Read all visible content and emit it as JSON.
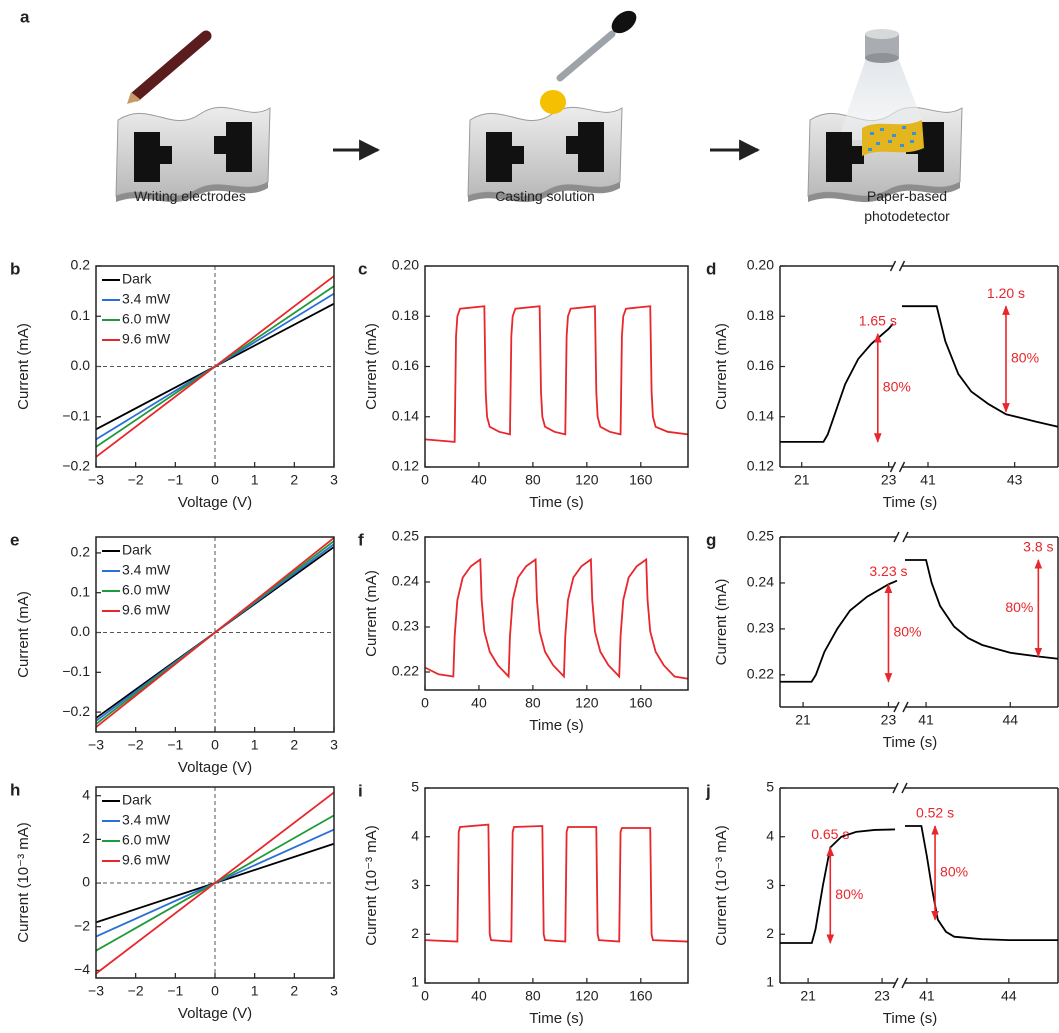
{
  "schematic": {
    "label": "a",
    "steps": [
      "Writing electrodes",
      "Casting solution",
      "Paper-based photodetector"
    ]
  },
  "chart_data": [
    {
      "type": "line",
      "label": "b",
      "xlabel": "Voltage (V)",
      "ylabel": "Current (mA)",
      "xlim": [
        -3,
        3
      ],
      "ylim": [
        -0.2,
        0.2
      ],
      "xticks": [
        {
          "value": -3,
          "label": "−3"
        },
        {
          "value": -2,
          "label": "−2"
        },
        {
          "value": -1,
          "label": "−1"
        },
        0,
        1,
        2,
        3
      ],
      "yticks": [
        {
          "value": -0.2,
          "label": "−0.2"
        },
        {
          "value": -0.1,
          "label": "−0.1"
        },
        {
          "value": 0,
          "label": "0.0"
        },
        0.1,
        0.2
      ],
      "zero_lines": true,
      "legend": "upper left",
      "x": [
        -3,
        3
      ],
      "series": [
        {
          "name": "Dark",
          "color": "#000000",
          "values": [
            -0.125,
            0.125
          ]
        },
        {
          "name": "3.4 mW",
          "color": "#2a6fd6",
          "values": [
            -0.145,
            0.145
          ]
        },
        {
          "name": "6.0 mW",
          "color": "#1e9a3a",
          "values": [
            -0.16,
            0.16
          ]
        },
        {
          "name": "9.6 mW",
          "color": "#e8262b",
          "values": [
            -0.18,
            0.18
          ]
        }
      ]
    },
    {
      "type": "line",
      "label": "c",
      "xlabel": "Time (s)",
      "ylabel": "Current (mA)",
      "xlim": [
        0,
        195
      ],
      "ylim": [
        0.12,
        0.2
      ],
      "xticks": [
        0,
        40,
        80,
        120,
        160
      ],
      "yticks": [
        0.12,
        0.14,
        0.16,
        0.18,
        {
          "value": 0.2,
          "label": "0.20"
        }
      ],
      "color": "#e8262b",
      "x": [
        0,
        22,
        23,
        24,
        26,
        44,
        45,
        46,
        48,
        55,
        63,
        64,
        65,
        67,
        85,
        86,
        87,
        89,
        96,
        104,
        105,
        106,
        108,
        126,
        127,
        128,
        130,
        137,
        145,
        146,
        147,
        149,
        167,
        168,
        169,
        171,
        180,
        195
      ],
      "values": [
        0.131,
        0.13,
        0.172,
        0.18,
        0.183,
        0.184,
        0.15,
        0.14,
        0.136,
        0.134,
        0.133,
        0.172,
        0.18,
        0.183,
        0.184,
        0.15,
        0.14,
        0.136,
        0.134,
        0.133,
        0.172,
        0.18,
        0.183,
        0.184,
        0.15,
        0.14,
        0.136,
        0.134,
        0.133,
        0.172,
        0.18,
        0.183,
        0.184,
        0.15,
        0.14,
        0.136,
        0.134,
        0.133
      ]
    },
    {
      "type": "line",
      "label": "d",
      "xlabel": "Time (s)",
      "ylabel": "Current (mA)",
      "ylim": [
        0.12,
        0.2
      ],
      "yticks": [
        0.12,
        0.14,
        0.16,
        0.18,
        {
          "value": 0.2,
          "label": "0.20"
        }
      ],
      "color": "#000000",
      "annotation_color": "#e8262b",
      "panels": [
        {
          "xlim": [
            20.5,
            23.1
          ],
          "xticks": [
            21,
            23
          ],
          "x": [
            20.5,
            21.5,
            21.6,
            21.8,
            22.0,
            22.3,
            22.6,
            23.0,
            23.1
          ],
          "values": [
            0.13,
            0.13,
            0.133,
            0.143,
            0.153,
            0.163,
            0.169,
            0.175,
            0.177
          ],
          "annotations": [
            {
              "label": "1.65 s",
              "percent": "80%",
              "x": 22.75,
              "y": [
                0.13,
                0.173
              ]
            }
          ]
        },
        {
          "xlim": [
            40.4,
            44.0
          ],
          "xticks": [
            41,
            43
          ],
          "x": [
            40.4,
            41.2,
            41.4,
            41.7,
            42.0,
            42.4,
            42.8,
            43.5,
            44.0
          ],
          "values": [
            0.184,
            0.184,
            0.17,
            0.157,
            0.15,
            0.145,
            0.141,
            0.138,
            0.136
          ],
          "annotations": [
            {
              "label": "1.20 s",
              "percent": "80%",
              "x": 42.8,
              "y": [
                0.184,
                0.142
              ]
            }
          ]
        }
      ]
    },
    {
      "type": "line",
      "label": "e",
      "xlabel": "Voltage (V)",
      "ylabel": "Current (mA)",
      "xlim": [
        -3,
        3
      ],
      "ylim": [
        -0.25,
        0.24
      ],
      "xticks": [
        {
          "value": -3,
          "label": "−3"
        },
        {
          "value": -2,
          "label": "−2"
        },
        {
          "value": -1,
          "label": "−1"
        },
        0,
        1,
        2,
        3
      ],
      "yticks": [
        {
          "value": -0.2,
          "label": "−0.2"
        },
        {
          "value": -0.1,
          "label": "−0.1"
        },
        {
          "value": 0,
          "label": "0.0"
        },
        0.1,
        0.2
      ],
      "zero_lines": true,
      "legend": "upper left",
      "x": [
        -3,
        3
      ],
      "series": [
        {
          "name": "Dark",
          "color": "#000000",
          "values": [
            -0.215,
            0.215
          ]
        },
        {
          "name": "3.4 mW",
          "color": "#2a6fd6",
          "values": [
            -0.222,
            0.222
          ]
        },
        {
          "name": "6.0 mW",
          "color": "#1e9a3a",
          "values": [
            -0.23,
            0.23
          ]
        },
        {
          "name": "9.6 mW",
          "color": "#e8262b",
          "values": [
            -0.238,
            0.238
          ]
        }
      ]
    },
    {
      "type": "line",
      "label": "f",
      "xlabel": "Time (s)",
      "ylabel": "Current (mA)",
      "xlim": [
        0,
        195
      ],
      "ylim": [
        0.216,
        0.25
      ],
      "xticks": [
        0,
        40,
        80,
        120,
        160
      ],
      "yticks": [
        0.22,
        0.23,
        0.24,
        0.25
      ],
      "color": "#e8262b",
      "x": [
        0,
        10,
        21,
        22,
        24,
        28,
        34,
        41,
        42,
        44,
        48,
        54,
        62,
        63,
        65,
        69,
        75,
        82,
        83,
        85,
        89,
        95,
        103,
        104,
        106,
        110,
        116,
        123,
        124,
        126,
        130,
        136,
        144,
        145,
        147,
        151,
        157,
        164,
        165,
        167,
        171,
        177,
        185,
        195
      ],
      "values": [
        0.221,
        0.2195,
        0.219,
        0.228,
        0.236,
        0.241,
        0.2435,
        0.245,
        0.236,
        0.229,
        0.2245,
        0.2215,
        0.219,
        0.228,
        0.236,
        0.241,
        0.2435,
        0.245,
        0.236,
        0.229,
        0.2245,
        0.2215,
        0.219,
        0.228,
        0.236,
        0.241,
        0.2435,
        0.245,
        0.236,
        0.229,
        0.2245,
        0.2215,
        0.219,
        0.228,
        0.236,
        0.241,
        0.2435,
        0.245,
        0.236,
        0.229,
        0.2245,
        0.2215,
        0.219,
        0.2185
      ]
    },
    {
      "type": "line",
      "label": "g",
      "xlabel": "Time (s)",
      "ylabel": "Current (mA)",
      "ylim": [
        0.213,
        0.25
      ],
      "yticks": [
        0.22,
        0.23,
        0.24,
        0.25
      ],
      "color": "#000000",
      "annotation_color": "#e8262b",
      "panels": [
        {
          "xlim": [
            20.46,
            23.2
          ],
          "xticks": [
            21,
            23
          ],
          "x": [
            20.46,
            21.2,
            21.3,
            21.5,
            21.8,
            22.1,
            22.5,
            23.0,
            23.2
          ],
          "values": [
            0.2185,
            0.2185,
            0.22,
            0.225,
            0.23,
            0.234,
            0.237,
            0.2397,
            0.2405
          ],
          "annotations": [
            {
              "label": "3.23 s",
              "percent": "80%",
              "x": 23.0,
              "y": [
                0.2185,
                0.2397
              ]
            }
          ]
        },
        {
          "xlim": [
            40.25,
            45.7
          ],
          "xticks": [
            41,
            44
          ],
          "x": [
            40.25,
            41.0,
            41.2,
            41.5,
            42.0,
            42.5,
            43.0,
            44.0,
            45.0,
            45.7
          ],
          "values": [
            0.245,
            0.245,
            0.24,
            0.235,
            0.2305,
            0.228,
            0.2265,
            0.2248,
            0.224,
            0.2235
          ],
          "annotations": [
            {
              "label": "3.8 s",
              "percent": "80%",
              "x": 45.0,
              "y": [
                0.245,
                0.224
              ]
            }
          ]
        }
      ]
    },
    {
      "type": "line",
      "label": "h",
      "xlabel": "Voltage (V)",
      "ylabel": "Current (10⁻³ mA)",
      "xlim": [
        -3,
        3
      ],
      "ylim": [
        -4.35,
        4.4
      ],
      "xticks": [
        {
          "value": -3,
          "label": "−3"
        },
        {
          "value": -2,
          "label": "−2"
        },
        {
          "value": -1,
          "label": "−1"
        },
        0,
        1,
        2,
        3
      ],
      "yticks": [
        {
          "value": -4,
          "label": "−4"
        },
        {
          "value": -2,
          "label": "−2"
        },
        0,
        2,
        4
      ],
      "zero_lines": true,
      "legend": "upper left",
      "x": [
        -3,
        3
      ],
      "series": [
        {
          "name": "Dark",
          "color": "#000000",
          "values": [
            -1.8,
            1.8
          ]
        },
        {
          "name": "3.4 mW",
          "color": "#2a6fd6",
          "values": [
            -2.45,
            2.45
          ]
        },
        {
          "name": "6.0 mW",
          "color": "#1e9a3a",
          "values": [
            -3.1,
            3.1
          ]
        },
        {
          "name": "9.6 mW",
          "color": "#e8262b",
          "values": [
            -4.15,
            4.15
          ]
        }
      ]
    },
    {
      "type": "line",
      "label": "i",
      "xlabel": "Time (s)",
      "ylabel": "Current (10⁻³ mA)",
      "xlim": [
        0,
        195
      ],
      "ylim": [
        1,
        5
      ],
      "xticks": [
        0,
        40,
        80,
        120,
        160
      ],
      "yticks": [
        1,
        2,
        3,
        4,
        5
      ],
      "color": "#e8262b",
      "x": [
        0,
        24,
        25,
        26,
        47,
        48,
        49,
        64,
        65,
        66,
        87,
        88,
        89,
        104,
        105,
        106,
        127,
        128,
        129,
        144,
        145,
        146,
        167,
        168,
        169,
        195
      ],
      "values": [
        1.88,
        1.85,
        4.1,
        4.2,
        4.25,
        2.0,
        1.88,
        1.85,
        4.1,
        4.2,
        4.22,
        2.0,
        1.88,
        1.85,
        4.1,
        4.2,
        4.2,
        2.0,
        1.88,
        1.85,
        4.1,
        4.18,
        4.18,
        2.0,
        1.88,
        1.85
      ]
    },
    {
      "type": "line",
      "label": "j",
      "xlabel": "Time (s)",
      "ylabel": "Current (10⁻³ mA)",
      "ylim": [
        1,
        5
      ],
      "yticks": [
        1,
        2,
        3,
        4,
        5
      ],
      "color": "#000000",
      "annotation_color": "#e8262b",
      "panels": [
        {
          "xlim": [
            20.24,
            23.35
          ],
          "xticks": [
            21,
            23
          ],
          "x": [
            20.24,
            21.1,
            21.2,
            21.4,
            21.6,
            21.9,
            22.3,
            22.8,
            23.35
          ],
          "values": [
            1.82,
            1.82,
            2.1,
            3.0,
            3.78,
            4.0,
            4.1,
            4.14,
            4.15
          ],
          "annotations": [
            {
              "label": "0.65 s",
              "percent": "80%",
              "x": 21.6,
              "y": [
                1.82,
                3.78
              ]
            }
          ]
        },
        {
          "xlim": [
            40.2,
            45.8
          ],
          "xticks": [
            41,
            44
          ],
          "x": [
            40.2,
            40.8,
            41.0,
            41.2,
            41.4,
            41.7,
            42.0,
            43.0,
            44.0,
            45.8
          ],
          "values": [
            4.22,
            4.22,
            3.6,
            2.9,
            2.3,
            2.05,
            1.95,
            1.9,
            1.88,
            1.88
          ],
          "annotations": [
            {
              "label": "0.52 s",
              "percent": "80%",
              "x": 41.3,
              "y": [
                4.22,
                2.3
              ]
            }
          ]
        }
      ]
    }
  ]
}
